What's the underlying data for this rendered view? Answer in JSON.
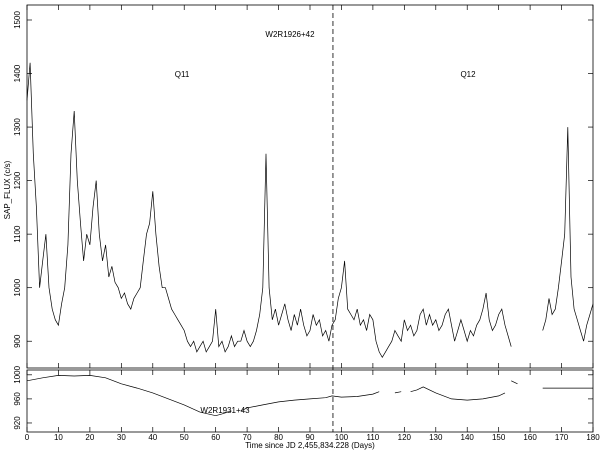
{
  "chart_data": [
    {
      "type": "line",
      "title": "W2R1926+42",
      "ylabel": "SAP_FLUX (c/s)",
      "annotations": [
        "Q11",
        "Q12"
      ],
      "vline": 97.3,
      "color": "#000000",
      "xlim": [
        0,
        180
      ],
      "ylim": [
        850,
        1528
      ],
      "yticks": [
        900,
        1000,
        1100,
        1200,
        1300,
        1400,
        1500
      ],
      "x": [
        0,
        1,
        2,
        3,
        4,
        5,
        6,
        7,
        8,
        9,
        10,
        11,
        12,
        13,
        14,
        15,
        16,
        17,
        18,
        19,
        20,
        21,
        22,
        23,
        24,
        25,
        26,
        27,
        28,
        29,
        30,
        31,
        32,
        33,
        34,
        35,
        36,
        37,
        38,
        39,
        40,
        41,
        42,
        43,
        44,
        45,
        46,
        47,
        48,
        49,
        50,
        51,
        52,
        53,
        54,
        55,
        56,
        57,
        58,
        59,
        60,
        61,
        62,
        63,
        64,
        65,
        66,
        67,
        68,
        69,
        70,
        71,
        72,
        73,
        74,
        75,
        76,
        77,
        78,
        79,
        80,
        81,
        82,
        83,
        84,
        85,
        86,
        87,
        88,
        89,
        90,
        91,
        92,
        93,
        94,
        95,
        96,
        97,
        98,
        99,
        100,
        101,
        102,
        103,
        104,
        105,
        106,
        107,
        108,
        109,
        110,
        111,
        112,
        113,
        114,
        115,
        116,
        117,
        118,
        119,
        120,
        121,
        122,
        123,
        124,
        125,
        126,
        127,
        128,
        129,
        130,
        131,
        132,
        133,
        134,
        135,
        136,
        137,
        138,
        139,
        140,
        141,
        142,
        143,
        144,
        145,
        146,
        147,
        148,
        149,
        150,
        151,
        152,
        153,
        154,
        155,
        156,
        157,
        158,
        159,
        160,
        161,
        162,
        163,
        164,
        165,
        166,
        167,
        168,
        169,
        170,
        171,
        172,
        173,
        174,
        175,
        176,
        177,
        178,
        179,
        180
      ],
      "values": [
        1350,
        1420,
        1250,
        1150,
        1000,
        1050,
        1100,
        1000,
        960,
        940,
        930,
        970,
        1000,
        1080,
        1250,
        1330,
        1200,
        1120,
        1050,
        1100,
        1080,
        1150,
        1200,
        1100,
        1050,
        1080,
        1020,
        1040,
        1010,
        1000,
        980,
        990,
        970,
        960,
        980,
        990,
        1000,
        1050,
        1100,
        1120,
        1180,
        1100,
        1040,
        1000,
        1000,
        980,
        960,
        950,
        940,
        930,
        920,
        900,
        890,
        900,
        880,
        890,
        900,
        880,
        890,
        900,
        960,
        890,
        900,
        880,
        890,
        910,
        890,
        900,
        900,
        920,
        900,
        890,
        900,
        920,
        950,
        1000,
        1250,
        1000,
        940,
        960,
        930,
        950,
        970,
        940,
        920,
        950,
        930,
        960,
        930,
        910,
        920,
        950,
        930,
        940,
        910,
        920,
        900,
        930,
        940,
        980,
        1000,
        1050,
        960,
        950,
        940,
        960,
        930,
        940,
        920,
        950,
        940,
        900,
        880,
        870,
        880,
        890,
        900,
        920,
        910,
        900,
        940,
        920,
        930,
        910,
        920,
        950,
        960,
        930,
        950,
        930,
        940,
        920,
        930,
        950,
        960,
        930,
        900,
        920,
        940,
        920,
        900,
        920,
        910,
        930,
        940,
        960,
        990,
        940,
        920,
        930,
        950,
        960,
        930,
        910,
        890,
        null,
        null,
        null,
        null,
        null,
        null,
        null,
        null,
        null,
        920,
        940,
        980,
        950,
        960,
        1000,
        1050,
        1100,
        1300,
        1020,
        960,
        940,
        920,
        900,
        930,
        950,
        970
      ]
    },
    {
      "type": "line",
      "title": "W2R1931+43",
      "xlabel": "Time since JD 2,455,834.228 (Days)",
      "color": "#000000",
      "xlim": [
        0,
        180
      ],
      "ylim": [
        905,
        1008
      ],
      "xticks": [
        0,
        10,
        20,
        30,
        40,
        50,
        60,
        70,
        80,
        90,
        100,
        110,
        120,
        130,
        140,
        150,
        160,
        170,
        180
      ],
      "yticks": [
        920,
        960,
        1000
      ],
      "x": [
        0,
        5,
        10,
        15,
        20,
        25,
        30,
        35,
        40,
        45,
        50,
        55,
        60,
        62,
        65,
        66,
        68,
        70,
        75,
        80,
        85,
        90,
        95,
        97,
        100,
        105,
        110,
        112,
        114,
        117,
        119,
        120,
        122,
        124,
        126,
        130,
        135,
        140,
        145,
        150,
        152,
        153,
        154,
        156,
        160,
        164,
        170,
        175,
        180
      ],
      "values": [
        990,
        995,
        999,
        998,
        999,
        995,
        985,
        978,
        970,
        960,
        950,
        938,
        932,
        935,
        940,
        null,
        940,
        945,
        950,
        955,
        958,
        960,
        962,
        965,
        963,
        964,
        968,
        972,
        null,
        970,
        972,
        null,
        972,
        975,
        980,
        970,
        960,
        958,
        960,
        965,
        970,
        null,
        990,
        985,
        null,
        978,
        978,
        978,
        978
      ]
    }
  ]
}
